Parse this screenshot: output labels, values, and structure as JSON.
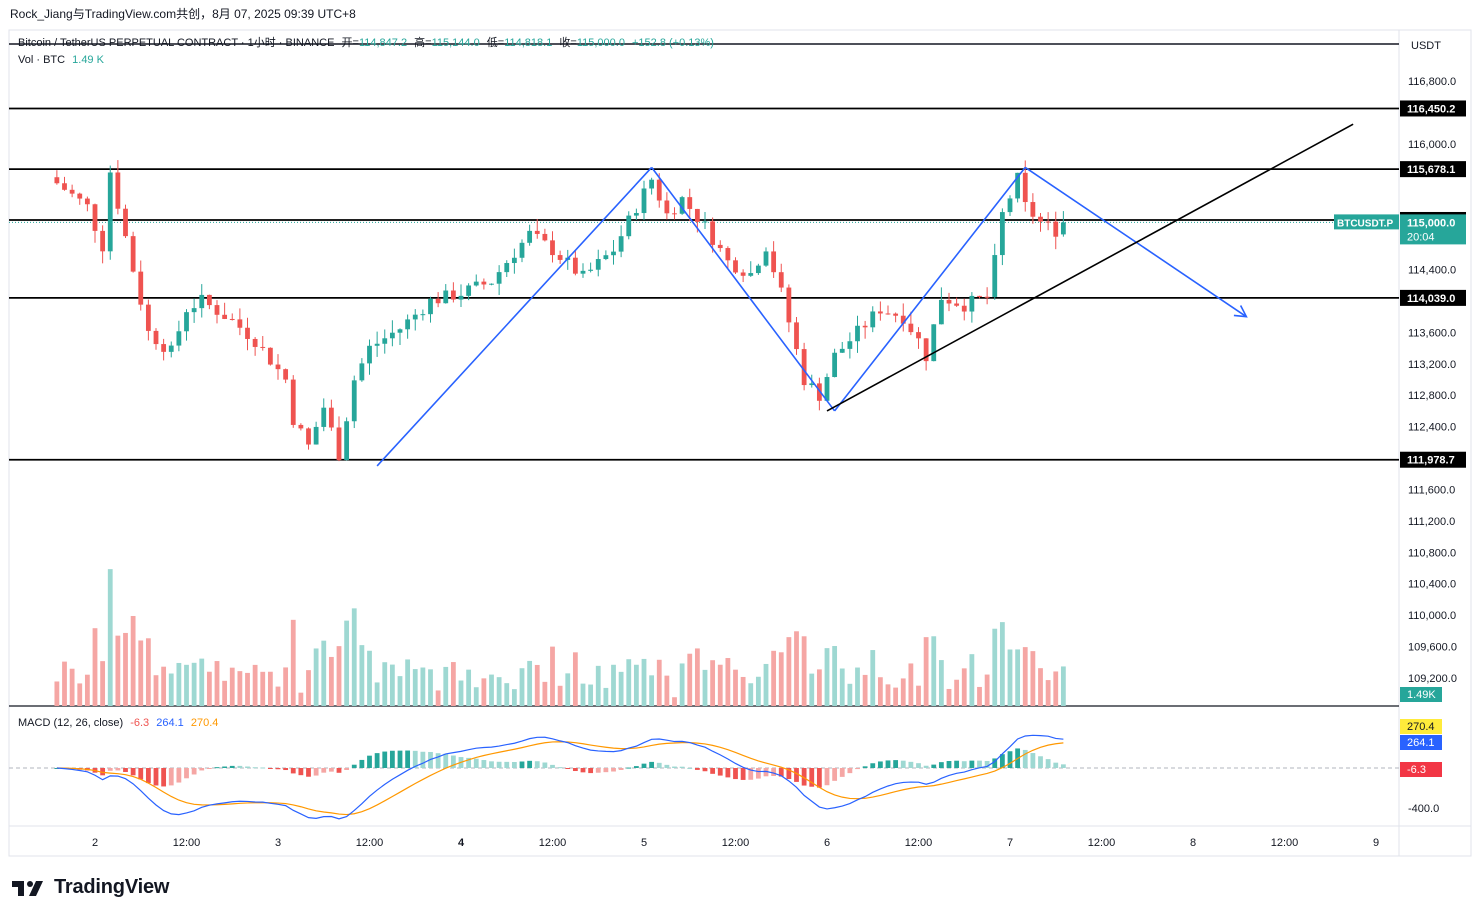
{
  "header": {
    "credit": "Rock_Jiang与TradingView.com共创，8月 07, 2025 09:39 UTC+8",
    "symbol_line": "Bitcoin / TetherUS PERPETUAL CONTRACT · 1小时 · BINANCE",
    "ohlc": {
      "open_label": "开=",
      "open": "114,847.2",
      "high_label": "高=",
      "high": "115,144.0",
      "low_label": "低=",
      "low": "114,818.1",
      "close_label": "收=",
      "close": "115,000.0",
      "change": "+152.8 (+0.13%)"
    },
    "volume_label": "Vol · BTC",
    "volume_value": "1.49 K"
  },
  "price_axis": {
    "currency": "USDT",
    "ticks": [
      "116,800.0",
      "116,000.0",
      "114,400.0",
      "113,600.0",
      "113,200.0",
      "112,800.0",
      "112,400.0",
      "111,600.0",
      "111,200.0",
      "110,800.0",
      "110,400.0",
      "110,000.0",
      "109,600.0",
      "109,200.0"
    ],
    "tick_values": [
      116800,
      116000,
      114400,
      113600,
      113200,
      112800,
      112400,
      111600,
      111200,
      110800,
      110400,
      110000,
      109600,
      109200
    ],
    "level_labels": [
      {
        "text": "116,450.2",
        "value": 116450.2
      },
      {
        "text": "115,678.1",
        "value": 115678.1
      },
      {
        "text": "115,030.7",
        "value": 115030.7
      },
      {
        "text": "114,039.0",
        "value": 114039.0
      },
      {
        "text": "111,978.7",
        "value": 111978.7
      }
    ],
    "last_price_tag": {
      "symbol": "BTCUSDT.P",
      "price": "115,000.0",
      "countdown": "20:04"
    },
    "volume_tag": "1.49K"
  },
  "macd": {
    "title": "MACD (12, 26, close)",
    "histogram": "-6.3",
    "macd_line": "264.1",
    "signal_line": "270.4",
    "axis_tick": "-400.0",
    "tags": {
      "signal": "270.4",
      "macd": "264.1",
      "histogram": "-6.3"
    }
  },
  "time_axis": {
    "labels": [
      "2",
      "12:00",
      "3",
      "12:00",
      "4",
      "12:00",
      "5",
      "12:00",
      "6",
      "12:00",
      "7",
      "12:00",
      "8",
      "12:00",
      "9"
    ]
  },
  "branding": {
    "name": "TradingView"
  },
  "colors": {
    "up": "#26a69a",
    "down": "#ef5350",
    "vol_up": "#9ed8d2",
    "vol_down": "#f5a6a4",
    "pattern": "#2962ff",
    "level": "#000000",
    "macd_line": "#2962ff",
    "signal_line": "#ff9800",
    "price_tag": "#26a69a",
    "hist_tag": "#f23645"
  },
  "chart_data": {
    "type": "candlestick",
    "interval": "1h",
    "y_unit": "USDT",
    "ylim": [
      108900,
      117300
    ],
    "price_series": [
      [
        "08-01 19:00",
        115500
      ],
      [
        "08-01 23:00",
        115200
      ],
      [
        "08-02 01:00",
        114700
      ],
      [
        "08-02 02:00",
        115650
      ],
      [
        "08-02 05:00",
        114400
      ],
      [
        "08-02 07:00",
        113600
      ],
      [
        "08-02 10:00",
        113350
      ],
      [
        "08-02 12:00",
        113900
      ],
      [
        "08-02 14:00",
        114000
      ],
      [
        "08-02 18:00",
        113750
      ],
      [
        "08-02 21:00",
        113500
      ],
      [
        "08-03 01:00",
        113000
      ],
      [
        "08-03 02:00",
        112500
      ],
      [
        "08-03 04:00",
        112150
      ],
      [
        "08-03 06:00",
        112650
      ],
      [
        "08-03 08:00",
        112050
      ],
      [
        "08-03 10:00",
        113000
      ],
      [
        "08-03 12:00",
        113400
      ],
      [
        "08-03 16:00",
        113650
      ],
      [
        "08-03 20:00",
        114000
      ],
      [
        "08-04 00:00",
        114100
      ],
      [
        "08-04 04:00",
        114250
      ],
      [
        "08-04 06:00",
        114500
      ],
      [
        "08-04 09:00",
        114850
      ],
      [
        "08-04 12:00",
        114650
      ],
      [
        "08-04 16:00",
        114300
      ],
      [
        "08-04 20:00",
        114650
      ],
      [
        "08-04 23:00",
        115200
      ],
      [
        "08-05 01:00",
        115550
      ],
      [
        "08-05 03:00",
        115100
      ],
      [
        "08-05 05:00",
        115300
      ],
      [
        "08-05 08:00",
        114950
      ],
      [
        "08-05 11:00",
        114500
      ],
      [
        "08-05 14:00",
        114350
      ],
      [
        "08-05 16:00",
        114700
      ],
      [
        "08-05 18:00",
        114100
      ],
      [
        "08-05 21:00",
        113000
      ],
      [
        "08-05 23:00",
        112800
      ],
      [
        "08-06 01:00",
        113300
      ],
      [
        "08-06 04:00",
        113600
      ],
      [
        "08-06 07:00",
        113900
      ],
      [
        "08-06 10:00",
        113800
      ],
      [
        "08-06 12:00",
        113500
      ],
      [
        "08-06 13:00",
        113300
      ],
      [
        "08-06 15:00",
        114050
      ],
      [
        "08-06 18:00",
        113950
      ],
      [
        "08-06 21:00",
        114050
      ],
      [
        "08-06 22:00",
        114500
      ],
      [
        "08-06 23:00",
        115100
      ],
      [
        "08-07 01:00",
        115550
      ],
      [
        "08-07 02:00",
        115200
      ],
      [
        "08-07 04:00",
        115000
      ],
      [
        "08-07 06:00",
        114900
      ],
      [
        "08-07 07:00",
        115000
      ]
    ],
    "last": {
      "time": "2025-08-07 07:00",
      "open": 114847.2,
      "high": 115144.0,
      "low": 114818.1,
      "close": 115000.0,
      "change": 152.8,
      "change_pct": 0.13
    },
    "horizontal_levels": [
      116450.2,
      115678.1,
      115030.7,
      114039.0,
      111978.7
    ],
    "pattern_zigzag": [
      [
        "08-03 13:00",
        111900
      ],
      [
        "08-05 01:00",
        115700
      ],
      [
        "08-06 01:00",
        112600
      ],
      [
        "08-07 02:00",
        115700
      ],
      [
        "08-08 07:00",
        113800
      ]
    ],
    "trendline": [
      [
        "08-06 00:00",
        112600
      ],
      [
        "08-08 21:00",
        116250
      ]
    ],
    "volume_btc_last": 1490,
    "macd": {
      "params": [
        12,
        26
      ],
      "macd": 264.1,
      "signal": 270.4,
      "histogram": -6.3
    }
  }
}
